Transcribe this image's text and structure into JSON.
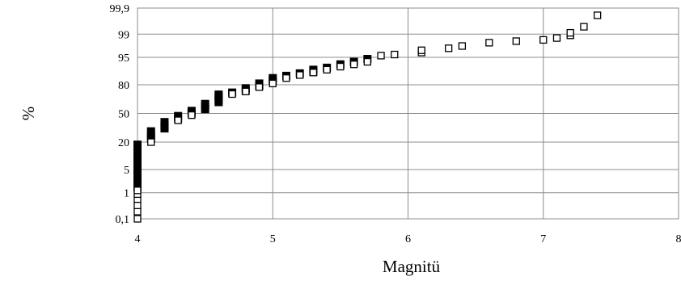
{
  "chart_data": {
    "type": "scatter",
    "title": "",
    "xlabel": "Magnitü",
    "ylabel": "%",
    "x_ticks": [
      "4",
      "5",
      "6",
      "7",
      "8"
    ],
    "xlim": [
      4,
      8
    ],
    "y_scale": "normal-probability",
    "y_ticks": [
      "0,1",
      "1",
      "5",
      "20",
      "50",
      "80",
      "95",
      "99",
      "99,9"
    ],
    "grid": true,
    "legend": "none",
    "marker": "square",
    "points_filled": [
      {
        "x": 4.0,
        "y": 1.5
      },
      {
        "x": 4.0,
        "y": 2
      },
      {
        "x": 4.0,
        "y": 3
      },
      {
        "x": 4.0,
        "y": 4
      },
      {
        "x": 4.0,
        "y": 5
      },
      {
        "x": 4.0,
        "y": 7
      },
      {
        "x": 4.0,
        "y": 9
      },
      {
        "x": 4.0,
        "y": 11
      },
      {
        "x": 4.0,
        "y": 13
      },
      {
        "x": 4.0,
        "y": 15
      },
      {
        "x": 4.0,
        "y": 18
      },
      {
        "x": 4.1,
        "y": 23
      },
      {
        "x": 4.1,
        "y": 26
      },
      {
        "x": 4.1,
        "y": 30
      },
      {
        "x": 4.2,
        "y": 33
      },
      {
        "x": 4.2,
        "y": 36
      },
      {
        "x": 4.2,
        "y": 40
      },
      {
        "x": 4.3,
        "y": 44
      },
      {
        "x": 4.3,
        "y": 47
      },
      {
        "x": 4.4,
        "y": 50
      },
      {
        "x": 4.4,
        "y": 53
      },
      {
        "x": 4.5,
        "y": 55
      },
      {
        "x": 4.5,
        "y": 58
      },
      {
        "x": 4.5,
        "y": 61
      },
      {
        "x": 4.6,
        "y": 63
      },
      {
        "x": 4.6,
        "y": 66
      },
      {
        "x": 4.6,
        "y": 69
      },
      {
        "x": 4.6,
        "y": 71
      },
      {
        "x": 4.7,
        "y": 73
      },
      {
        "x": 4.8,
        "y": 75
      },
      {
        "x": 4.8,
        "y": 77
      },
      {
        "x": 4.9,
        "y": 79
      },
      {
        "x": 4.9,
        "y": 81
      },
      {
        "x": 5.0,
        "y": 83
      },
      {
        "x": 5.0,
        "y": 85
      },
      {
        "x": 5.1,
        "y": 86.5
      },
      {
        "x": 5.2,
        "y": 88
      },
      {
        "x": 5.3,
        "y": 89
      },
      {
        "x": 5.3,
        "y": 90
      },
      {
        "x": 5.4,
        "y": 91
      },
      {
        "x": 5.5,
        "y": 92.5
      },
      {
        "x": 5.6,
        "y": 93.5
      },
      {
        "x": 5.7,
        "y": 94.5
      }
    ],
    "points_open": [
      {
        "x": 4.0,
        "y": 0.1
      },
      {
        "x": 4.0,
        "y": 0.2
      },
      {
        "x": 4.0,
        "y": 0.35
      },
      {
        "x": 4.0,
        "y": 0.6
      },
      {
        "x": 4.0,
        "y": 0.9
      },
      {
        "x": 4.0,
        "y": 1.2
      },
      {
        "x": 4.1,
        "y": 20
      },
      {
        "x": 4.3,
        "y": 42
      },
      {
        "x": 4.4,
        "y": 48
      },
      {
        "x": 4.7,
        "y": 71.5
      },
      {
        "x": 4.8,
        "y": 74
      },
      {
        "x": 4.9,
        "y": 78
      },
      {
        "x": 5.0,
        "y": 81
      },
      {
        "x": 5.1,
        "y": 85
      },
      {
        "x": 5.2,
        "y": 87
      },
      {
        "x": 5.3,
        "y": 88.5
      },
      {
        "x": 5.4,
        "y": 90
      },
      {
        "x": 5.5,
        "y": 91.5
      },
      {
        "x": 5.6,
        "y": 92.5
      },
      {
        "x": 5.7,
        "y": 93.5
      },
      {
        "x": 5.8,
        "y": 95.5
      },
      {
        "x": 5.9,
        "y": 95.8
      },
      {
        "x": 6.1,
        "y": 96.3
      },
      {
        "x": 6.1,
        "y": 96.8
      },
      {
        "x": 6.3,
        "y": 97.2
      },
      {
        "x": 6.4,
        "y": 97.6
      },
      {
        "x": 6.6,
        "y": 98.1
      },
      {
        "x": 6.8,
        "y": 98.3
      },
      {
        "x": 7.0,
        "y": 98.45
      },
      {
        "x": 7.1,
        "y": 98.65
      },
      {
        "x": 7.2,
        "y": 98.9
      },
      {
        "x": 7.2,
        "y": 99.1
      },
      {
        "x": 7.3,
        "y": 99.45
      },
      {
        "x": 7.4,
        "y": 99.8
      }
    ]
  }
}
